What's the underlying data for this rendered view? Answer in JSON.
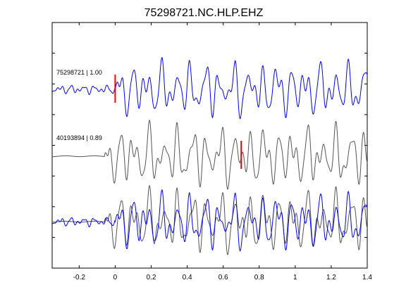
{
  "chart_data": {
    "type": "line",
    "title": "75298721.NC.HLP.EHZ",
    "xlabel": "",
    "ylabel": "",
    "xlim": [
      -0.35,
      1.4
    ],
    "x_ticks": [
      -0.2,
      0,
      0.2,
      0.4,
      0.6,
      0.8,
      1,
      1.2,
      1.4
    ],
    "x_tick_labels": [
      "-0.2",
      "0",
      "0.2",
      "0.4",
      "0.6",
      "0.8",
      "1",
      "1.2",
      "1.4"
    ],
    "grid": false,
    "colors": {
      "blue": "#0000ff",
      "gray": "#555555",
      "red": "#ff0000",
      "axes": "#000000"
    },
    "traces": [
      {
        "label": "75298721 | 1.00",
        "color": "#0000ff",
        "pick_time": 0.0
      },
      {
        "label": "40193894 | 0.89",
        "color": "#555555",
        "pick_time": 0.7
      }
    ],
    "overlay": "both waveforms superimposed in the bottom panel"
  }
}
